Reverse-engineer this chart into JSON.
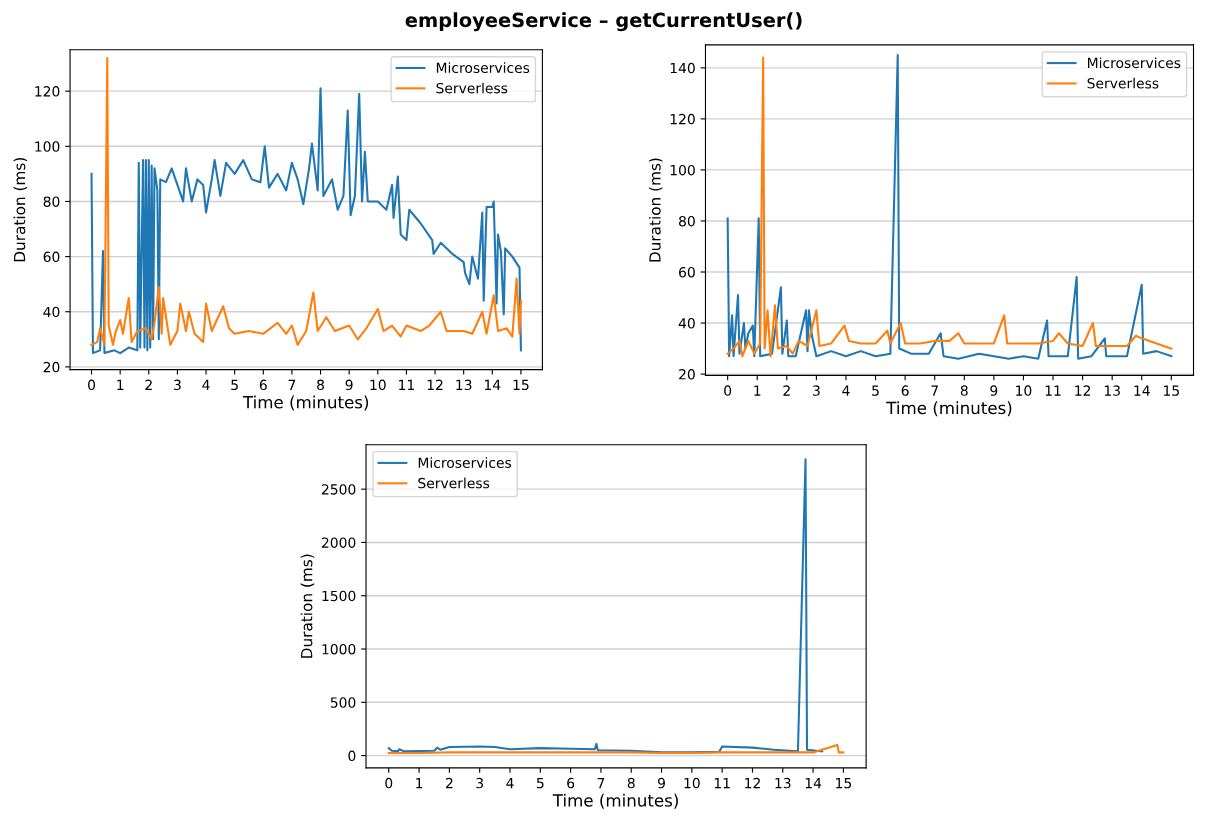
{
  "chart_data": [
    {
      "type": "line",
      "title": "employeeService – getCurrentUser()",
      "xlabel": "Time (minutes)",
      "ylabel": "Duration (ms)",
      "xlim": [
        -0.75,
        15.75
      ],
      "xticks": [
        0,
        1,
        2,
        3,
        4,
        5,
        6,
        7,
        8,
        9,
        10,
        11,
        12,
        13,
        14,
        15
      ],
      "ylim": [
        19,
        135
      ],
      "yticks": [
        20,
        40,
        60,
        80,
        100,
        120
      ],
      "grid": "y",
      "legend": "top right",
      "series": [
        {
          "name": "Microservices",
          "color": "#1f77b4",
          "x": [
            0.0,
            0.05,
            0.3,
            0.4,
            0.45,
            0.8,
            1.0,
            1.3,
            1.6,
            1.65,
            1.7,
            1.8,
            1.85,
            1.9,
            1.95,
            2.0,
            2.05,
            2.1,
            2.15,
            2.2,
            2.3,
            2.35,
            2.4,
            2.6,
            2.8,
            3.0,
            3.2,
            3.3,
            3.5,
            3.7,
            3.9,
            4.0,
            4.2,
            4.3,
            4.5,
            4.7,
            5.0,
            5.3,
            5.6,
            5.9,
            6.05,
            6.2,
            6.5,
            6.8,
            7.0,
            7.2,
            7.4,
            7.6,
            7.7,
            7.9,
            8.0,
            8.1,
            8.4,
            8.6,
            8.8,
            8.95,
            9.05,
            9.2,
            9.35,
            9.45,
            9.55,
            9.65,
            10.0,
            10.3,
            10.5,
            10.55,
            10.7,
            10.8,
            11.0,
            11.1,
            11.5,
            11.9,
            11.95,
            12.2,
            12.6,
            13.0,
            13.05,
            13.2,
            13.3,
            13.5,
            13.65,
            13.7,
            13.8,
            14.0,
            14.05,
            14.15,
            14.2,
            14.3,
            14.4,
            14.45,
            14.7,
            14.95,
            15.0
          ],
          "values": [
            90,
            25,
            26,
            62,
            25,
            26,
            25,
            27,
            26,
            94,
            27,
            95,
            27,
            95,
            26,
            95,
            27,
            93,
            30,
            92,
            84,
            30,
            88,
            87,
            92,
            86,
            80,
            92,
            80,
            88,
            86,
            76,
            88,
            95,
            82,
            94,
            90,
            95,
            88,
            87,
            100,
            85,
            90,
            84,
            94,
            88,
            79,
            92,
            101,
            84,
            121,
            82,
            88,
            77,
            82,
            113,
            75,
            82,
            119,
            80,
            98,
            80,
            80,
            77,
            86,
            74,
            89,
            68,
            66,
            77,
            72,
            66,
            61,
            65,
            61,
            58,
            54,
            50,
            60,
            52,
            76,
            44,
            78,
            78,
            80,
            43,
            68,
            62,
            39,
            63,
            60,
            56,
            26
          ]
        },
        {
          "name": "Serverless",
          "color": "#ff7f0e",
          "x": [
            0.0,
            0.2,
            0.3,
            0.45,
            0.55,
            0.6,
            0.75,
            0.85,
            1.0,
            1.1,
            1.3,
            1.4,
            1.6,
            1.9,
            2.1,
            2.2,
            2.35,
            2.45,
            2.5,
            2.75,
            3.0,
            3.1,
            3.3,
            3.4,
            3.6,
            3.9,
            4.0,
            4.2,
            4.6,
            4.8,
            5.0,
            5.5,
            6.0,
            6.5,
            6.8,
            7.0,
            7.2,
            7.5,
            7.75,
            7.9,
            8.2,
            8.5,
            9.0,
            9.3,
            9.6,
            10.0,
            10.2,
            10.5,
            10.8,
            11.0,
            11.5,
            11.8,
            12.2,
            12.4,
            13.0,
            13.3,
            13.65,
            13.8,
            14.05,
            14.2,
            14.5,
            14.7,
            14.85,
            14.95,
            15.0
          ],
          "values": [
            28,
            29,
            34,
            28,
            132,
            35,
            28,
            33,
            37,
            32,
            45,
            29,
            33,
            34,
            30,
            36,
            49,
            32,
            45,
            28,
            33,
            43,
            33,
            40,
            32,
            29,
            43,
            33,
            42,
            34,
            32,
            33,
            32,
            36,
            32,
            35,
            28,
            33,
            47,
            33,
            38,
            33,
            35,
            30,
            34,
            41,
            33,
            35,
            31,
            35,
            33,
            35,
            40,
            33,
            33,
            32,
            40,
            32,
            46,
            33,
            34,
            31,
            52,
            32,
            44
          ]
        }
      ]
    },
    {
      "type": "line",
      "xlabel": "Time (minutes)",
      "ylabel": "Duration (ms)",
      "xlim": [
        -0.75,
        15.75
      ],
      "xticks": [
        0,
        1,
        2,
        3,
        4,
        5,
        6,
        7,
        8,
        9,
        10,
        11,
        12,
        13,
        14,
        15
      ],
      "ylim": [
        19.5,
        149
      ],
      "yticks": [
        20,
        40,
        60,
        80,
        100,
        120,
        140
      ],
      "grid": "y",
      "legend": "top right",
      "series": [
        {
          "name": "Microservices",
          "color": "#1f77b4",
          "x": [
            0,
            0.05,
            0.15,
            0.2,
            0.35,
            0.4,
            0.55,
            0.6,
            0.7,
            0.85,
            0.9,
            1.05,
            1.1,
            1.5,
            1.8,
            1.85,
            2.0,
            2.05,
            2.3,
            2.65,
            2.7,
            2.75,
            2.85,
            3.0,
            3.5,
            4.0,
            4.5,
            5.0,
            5.5,
            5.75,
            5.8,
            6.2,
            6.8,
            7.2,
            7.3,
            7.8,
            8.5,
            9.0,
            9.5,
            10.0,
            10.5,
            10.8,
            10.85,
            11.5,
            11.8,
            11.85,
            12.3,
            12.75,
            12.8,
            13.5,
            14.0,
            14.05,
            14.5,
            15.0
          ],
          "values": [
            81,
            27,
            43,
            27,
            51,
            28,
            40,
            30,
            36,
            39,
            27,
            81,
            27,
            28,
            54,
            28,
            41,
            27,
            27,
            45,
            29,
            45,
            35,
            27,
            29,
            27,
            29,
            27,
            28,
            145,
            30,
            28,
            28,
            36,
            27,
            26,
            28,
            27,
            26,
            27,
            26,
            41,
            27,
            27,
            58,
            26,
            27,
            34,
            27,
            27,
            55,
            28,
            29,
            27
          ]
        },
        {
          "name": "Serverless",
          "color": "#ff7f0e",
          "x": [
            0,
            0.2,
            0.4,
            0.5,
            0.7,
            0.9,
            1.1,
            1.2,
            1.25,
            1.35,
            1.45,
            1.6,
            1.7,
            2.0,
            2.2,
            2.4,
            2.7,
            3.0,
            3.1,
            3.5,
            3.95,
            4.1,
            4.5,
            5.0,
            5.4,
            5.5,
            5.85,
            6.0,
            6.5,
            7.0,
            7.5,
            7.8,
            8.0,
            8.5,
            9.0,
            9.35,
            9.45,
            10.0,
            10.5,
            11.0,
            11.2,
            11.5,
            12.0,
            12.35,
            12.45,
            13.0,
            13.5,
            13.8,
            14.0,
            14.5,
            15.0
          ],
          "values": [
            28,
            30,
            33,
            27,
            33,
            28,
            32,
            144,
            30,
            45,
            27,
            47,
            30,
            31,
            28,
            33,
            31,
            45,
            31,
            32,
            39,
            33,
            32,
            32,
            37,
            32,
            40,
            32,
            32,
            33,
            33,
            36,
            32,
            32,
            32,
            43,
            32,
            32,
            32,
            33,
            36,
            32,
            31,
            40,
            31,
            31,
            31,
            35,
            34,
            32,
            30
          ]
        }
      ]
    },
    {
      "type": "line",
      "xlabel": "Time (minutes)",
      "ylabel": "Duration (ms)",
      "xlim": [
        -0.75,
        15.75
      ],
      "xticks": [
        0,
        1,
        2,
        3,
        4,
        5,
        6,
        7,
        8,
        9,
        10,
        11,
        12,
        13,
        14,
        15
      ],
      "ylim": [
        -115,
        2917
      ],
      "yticks": [
        0,
        500,
        1000,
        1500,
        2000,
        2500
      ],
      "grid": "y",
      "legend": "top left",
      "series": [
        {
          "name": "Microservices",
          "color": "#1f77b4",
          "x": [
            0,
            0.1,
            0.3,
            0.35,
            0.5,
            1.5,
            1.6,
            1.7,
            2.0,
            3.0,
            3.5,
            4.0,
            5.0,
            6.0,
            6.8,
            6.85,
            6.9,
            8.0,
            9.0,
            10.0,
            10.9,
            11.0,
            12.0,
            12.7,
            13.5,
            13.75,
            13.8,
            14.3
          ],
          "values": [
            70,
            45,
            40,
            60,
            40,
            45,
            75,
            55,
            80,
            85,
            80,
            60,
            70,
            65,
            60,
            110,
            50,
            45,
            30,
            30,
            35,
            85,
            75,
            55,
            40,
            2780,
            55,
            40
          ]
        },
        {
          "name": "Serverless",
          "color": "#ff7f0e",
          "x": [
            0,
            1,
            2,
            3,
            4,
            5,
            6,
            7,
            8,
            9,
            10,
            11,
            12,
            13,
            14,
            14.8,
            14.85,
            15
          ],
          "values": [
            25,
            25,
            30,
            30,
            30,
            30,
            30,
            30,
            30,
            25,
            25,
            30,
            30,
            30,
            30,
            100,
            30,
            30
          ]
        }
      ]
    }
  ]
}
